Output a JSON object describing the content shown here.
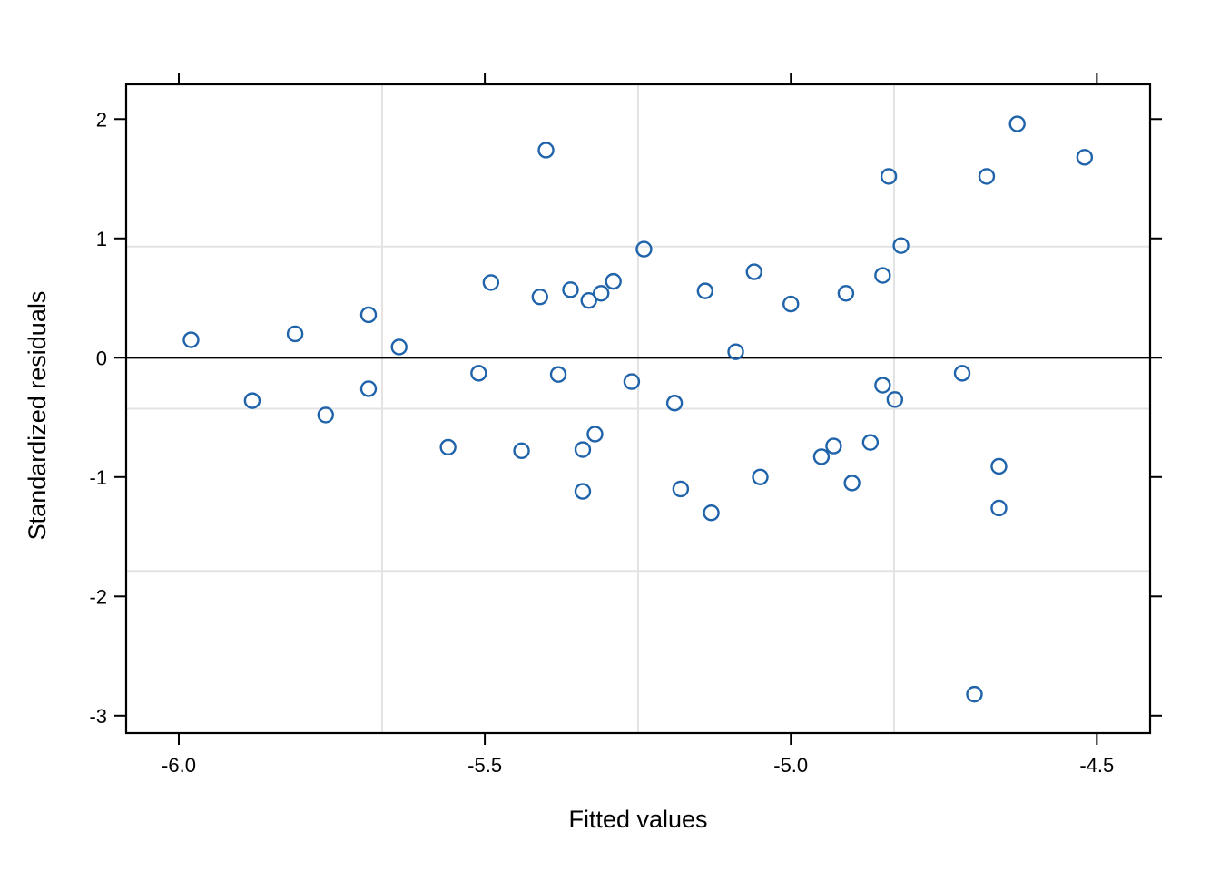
{
  "figure": {
    "background_color": "#ffffff",
    "xlabel": "Fitted values",
    "ylabel": "Standardized residuals"
  },
  "chart_data": {
    "type": "scatter",
    "title": "",
    "xlabel": "Fitted values",
    "ylabel": "Standardized residuals",
    "xlim": [
      -6.086,
      -4.413
    ],
    "ylim": [
      -3.146,
      2.291
    ],
    "x_ticks": [
      -6.0,
      -5.5,
      -5.0,
      -4.5
    ],
    "x_tick_labels": [
      "-6.0",
      "-5.5",
      "-5.0",
      "-4.5"
    ],
    "y_ticks": [
      2,
      1,
      0,
      -1,
      -2,
      -3
    ],
    "y_tick_labels": [
      "2",
      "1",
      "0",
      "-1",
      "-2",
      "-3"
    ],
    "legend": "none",
    "grid": {
      "style": "evenly-spaced panel grid",
      "h_lines": 3,
      "v_lines": 3,
      "color": "#e3e3e3"
    },
    "reference_line_y": 0,
    "marker": {
      "shape": "open-circle",
      "color": "#1f63aa",
      "radius_px": 8,
      "stroke_px": 2.4
    },
    "frame_color": "#000000",
    "points": [
      [
        -5.98,
        0.15
      ],
      [
        -5.88,
        -0.36
      ],
      [
        -5.81,
        0.2
      ],
      [
        -5.76,
        -0.48
      ],
      [
        -5.69,
        0.36
      ],
      [
        -5.69,
        -0.26
      ],
      [
        -5.64,
        0.09
      ],
      [
        -5.56,
        -0.75
      ],
      [
        -5.51,
        -0.13
      ],
      [
        -5.49,
        0.63
      ],
      [
        -5.44,
        -0.78
      ],
      [
        -5.41,
        0.51
      ],
      [
        -5.4,
        1.74
      ],
      [
        -5.38,
        -0.14
      ],
      [
        -5.36,
        0.57
      ],
      [
        -5.34,
        -0.77
      ],
      [
        -5.34,
        -1.12
      ],
      [
        -5.33,
        0.48
      ],
      [
        -5.32,
        -0.64
      ],
      [
        -5.31,
        0.54
      ],
      [
        -5.29,
        0.64
      ],
      [
        -5.26,
        -0.2
      ],
      [
        -5.24,
        0.91
      ],
      [
        -5.19,
        -0.38
      ],
      [
        -5.18,
        -1.1
      ],
      [
        -5.14,
        0.56
      ],
      [
        -5.13,
        -1.3
      ],
      [
        -5.09,
        0.05
      ],
      [
        -5.06,
        0.72
      ],
      [
        -5.05,
        -1.0
      ],
      [
        -5.0,
        0.45
      ],
      [
        -4.95,
        -0.83
      ],
      [
        -4.93,
        -0.74
      ],
      [
        -4.91,
        0.54
      ],
      [
        -4.9,
        -1.05
      ],
      [
        -4.87,
        -0.71
      ],
      [
        -4.85,
        -0.23
      ],
      [
        -4.85,
        0.69
      ],
      [
        -4.84,
        1.52
      ],
      [
        -4.83,
        -0.35
      ],
      [
        -4.82,
        0.94
      ],
      [
        -4.72,
        -0.13
      ],
      [
        -4.7,
        -2.82
      ],
      [
        -4.68,
        1.52
      ],
      [
        -4.66,
        -0.91
      ],
      [
        -4.66,
        -1.26
      ],
      [
        -4.63,
        1.96
      ],
      [
        -4.52,
        1.68
      ]
    ]
  }
}
